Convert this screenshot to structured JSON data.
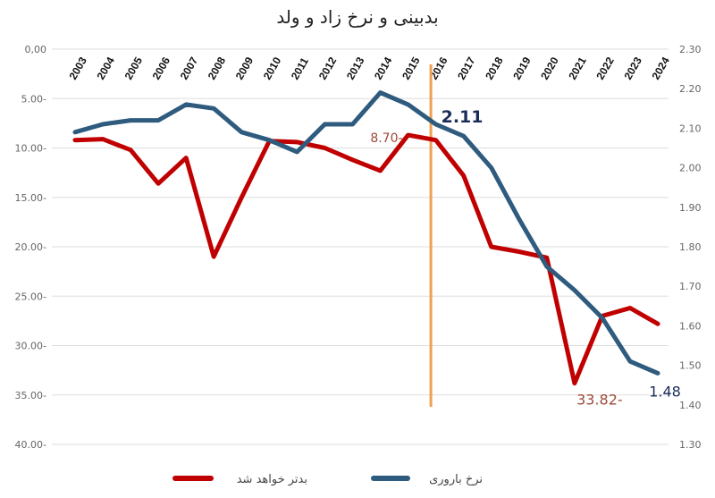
{
  "chart_data": {
    "type": "line",
    "title": "بدبینی و نرخ زاد و ولد",
    "categories": [
      "2003",
      "2004",
      "2005",
      "2006",
      "2007",
      "2008",
      "2009",
      "2010",
      "2011",
      "2012",
      "2013",
      "2014",
      "2015",
      "2016",
      "2017",
      "2018",
      "2019",
      "2020",
      "2021",
      "2022",
      "2023",
      "2024"
    ],
    "left_axis": {
      "ylim": [
        0,
        40
      ],
      "inverted": true,
      "tick_labels": [
        "0,00",
        "5.00-",
        "10.00-",
        "15.00-",
        "20.00-",
        "25.00-",
        "30.00-",
        "35.00-",
        "40.00-"
      ]
    },
    "right_axis": {
      "ylim": [
        1.3,
        2.3
      ],
      "tick_labels": [
        "2.30",
        "2.20",
        "2.10",
        "2.00",
        "1.90",
        "1.80",
        "1.70",
        "1.60",
        "1.50",
        "1.40",
        "1.30"
      ]
    },
    "series": [
      {
        "name": "بدتر خواهد شد",
        "axis": "left",
        "color": "#c00000",
        "values": [
          -9.2,
          -9.1,
          -10.2,
          -13.6,
          -11.0,
          -21.0,
          -15.0,
          -9.3,
          -9.4,
          -10.0,
          -11.2,
          -12.3,
          -8.7,
          -9.2,
          -12.8,
          -20.0,
          -20.5,
          -21.1,
          -33.82,
          -27.0,
          -26.2,
          -27.8
        ]
      },
      {
        "name": "نرخ باروری",
        "axis": "right",
        "color": "#2e5b7e",
        "values": [
          2.09,
          2.11,
          2.12,
          2.12,
          2.16,
          2.15,
          2.09,
          2.07,
          2.04,
          2.11,
          2.11,
          2.19,
          2.16,
          2.11,
          2.08,
          2.0,
          1.87,
          1.75,
          1.69,
          1.62,
          1.51,
          1.48
        ]
      }
    ],
    "annotations": [
      {
        "text": "8.70-",
        "series": 0,
        "index": 12
      },
      {
        "text": "2.11",
        "series": 1,
        "index": 13
      },
      {
        "text": "33.82-",
        "series": 0,
        "index": 18
      },
      {
        "text": "1.48",
        "series": 1,
        "index": 21
      }
    ],
    "vertical_marker": {
      "between": [
        "2015",
        "2016"
      ],
      "color": "#f0a050"
    },
    "legend": "bottom",
    "grid": true
  }
}
